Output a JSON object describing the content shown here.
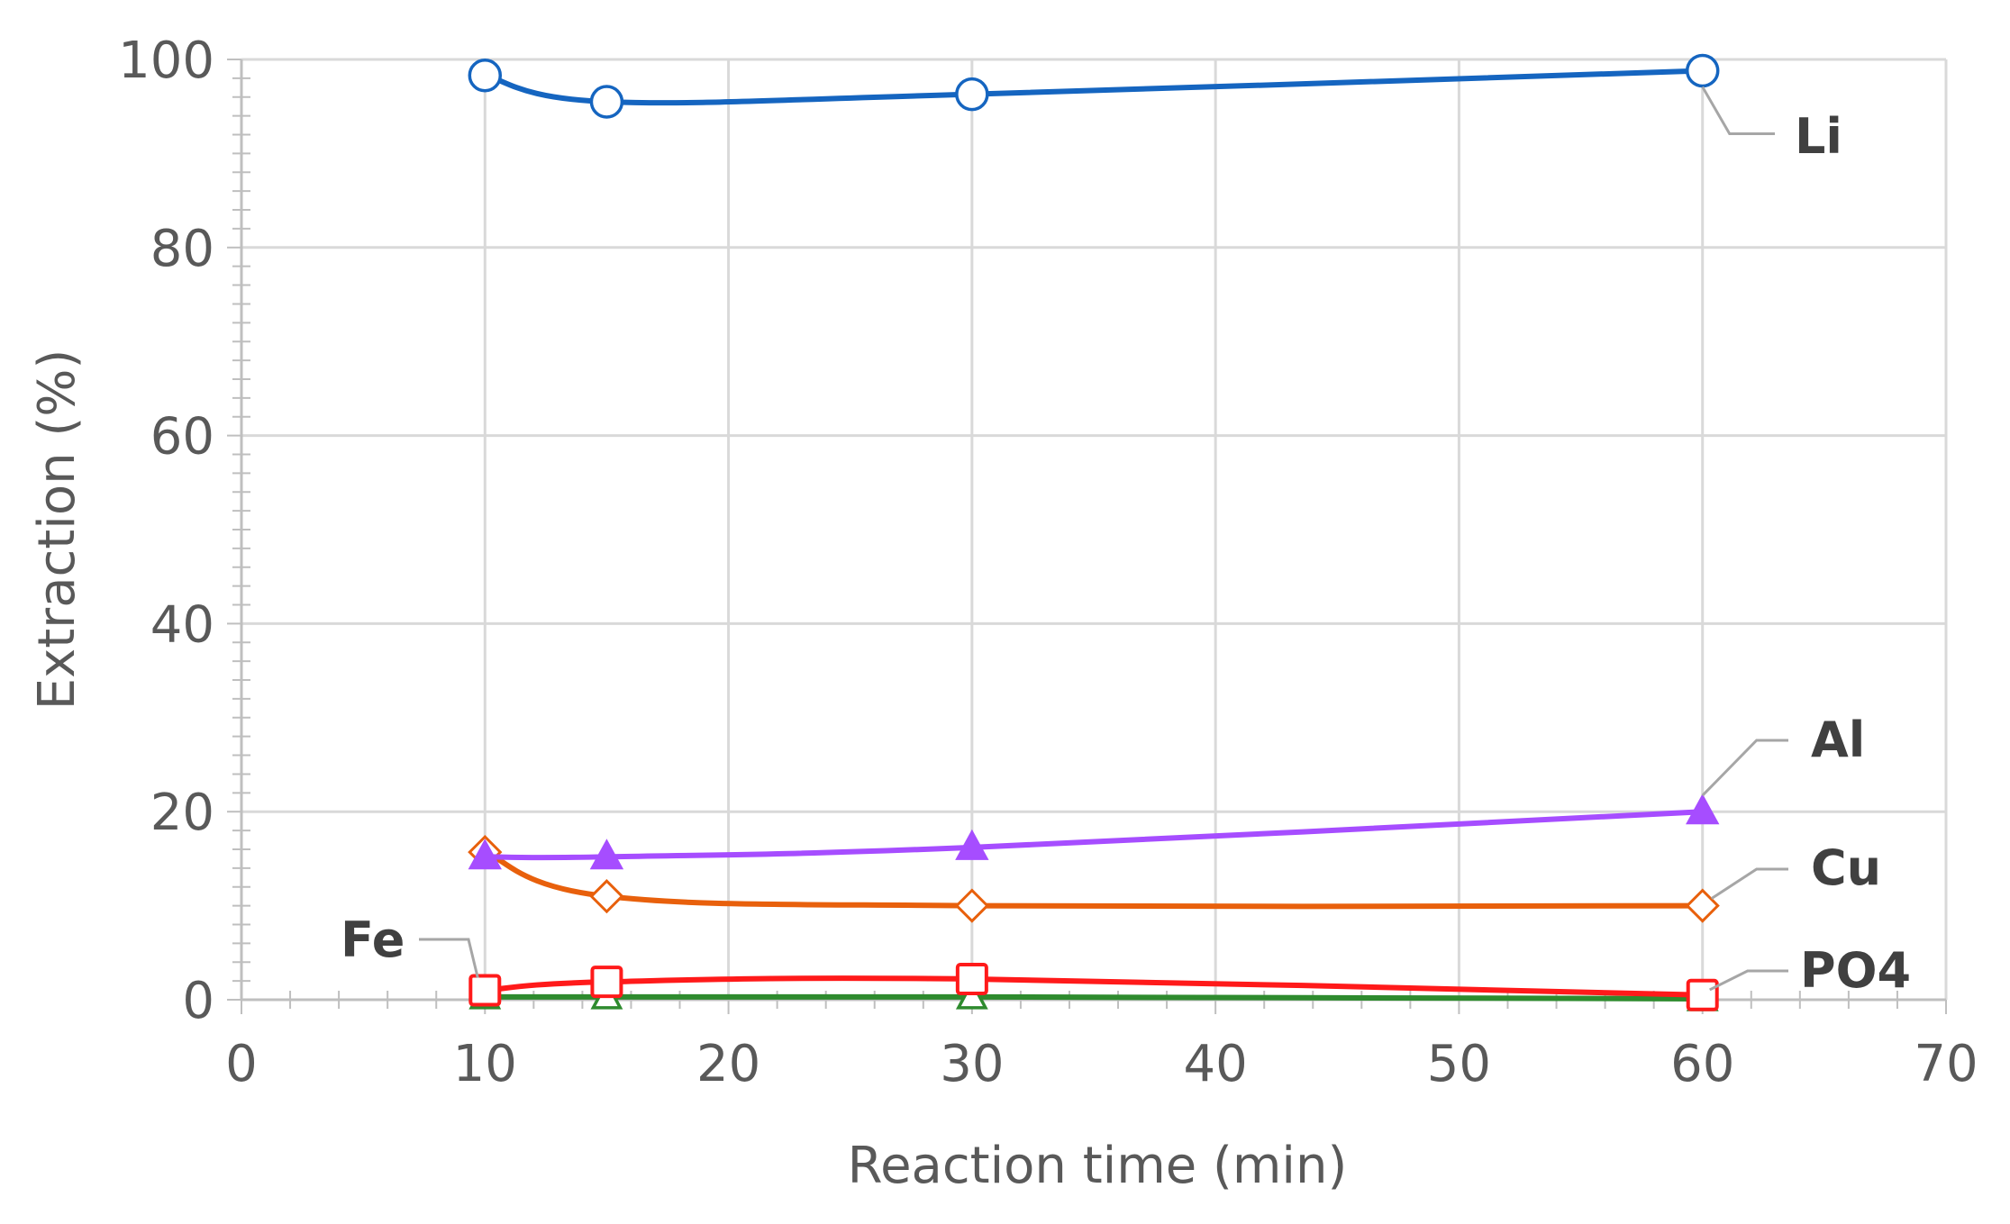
{
  "chart_data": {
    "type": "line",
    "title": "",
    "xlabel": "Reaction time (min)",
    "ylabel": "Extraction (%)",
    "xlim": [
      0,
      70
    ],
    "ylim": [
      0,
      100
    ],
    "xticks": [
      0,
      10,
      20,
      30,
      40,
      50,
      60,
      70
    ],
    "yticks": [
      0,
      20,
      40,
      60,
      80,
      100
    ],
    "grid": true,
    "legend": "none (series labeled directly next to the last point)",
    "x": [
      10,
      15,
      30,
      60
    ],
    "series": [
      {
        "name": "Li",
        "values": [
          98.3,
          95.5,
          96.3,
          98.8
        ],
        "color": "#1565c0",
        "marker": "circle-open"
      },
      {
        "name": "Al",
        "values": [
          15.2,
          15.2,
          16.2,
          20.0
        ],
        "color": "#a64dff",
        "marker": "triangle-filled"
      },
      {
        "name": "Cu",
        "values": [
          15.7,
          11.0,
          10.0,
          10.0
        ],
        "color": "#e8600c",
        "marker": "diamond-open"
      },
      {
        "name": "Fe",
        "values": [
          1.0,
          1.9,
          2.2,
          0.5
        ],
        "color": "#ff1a1a",
        "marker": "square-open"
      },
      {
        "name": "PO4",
        "values": [
          0.3,
          0.3,
          0.3,
          0.1
        ],
        "color": "#2e8b2e",
        "marker": "triangle-open"
      }
    ]
  }
}
